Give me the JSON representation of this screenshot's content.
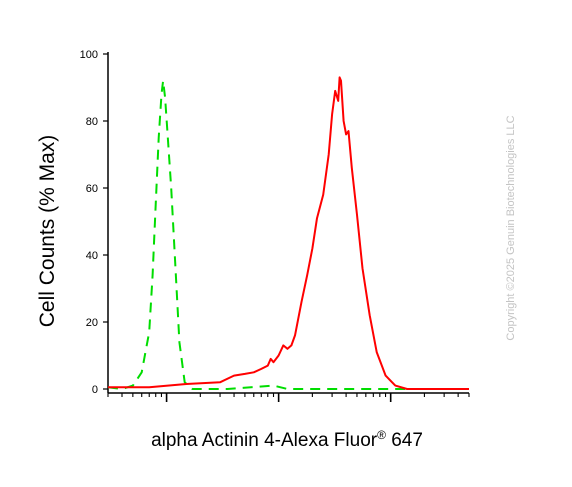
{
  "chart_data": {
    "type": "line",
    "title": "",
    "ylabel": "Cell Counts (% Max)",
    "xlabel_main": "alpha Actinin 4-Alexa Fluor",
    "xlabel_sup": "®",
    "xlabel_tail": " 647",
    "x_scale": "log",
    "xlim": [
      0.3,
      500
    ],
    "ylim": [
      0,
      100
    ],
    "y_ticks": [
      0,
      20,
      40,
      60,
      80,
      100
    ],
    "x_major_ticks": [
      1,
      10,
      100
    ],
    "grid": false,
    "legend": "none",
    "series": [
      {
        "color": "#00dd00",
        "style": "dashed",
        "points": [
          [
            0.3,
            0.5
          ],
          [
            0.4,
            0
          ],
          [
            0.5,
            1
          ],
          [
            0.6,
            5
          ],
          [
            0.7,
            17
          ],
          [
            0.75,
            34
          ],
          [
            0.8,
            55
          ],
          [
            0.85,
            75
          ],
          [
            0.9,
            88
          ],
          [
            0.93,
            92
          ],
          [
            0.97,
            87
          ],
          [
            1.02,
            76
          ],
          [
            1.1,
            60
          ],
          [
            1.2,
            36
          ],
          [
            1.3,
            14
          ],
          [
            1.45,
            2
          ],
          [
            1.7,
            0
          ],
          [
            3.5,
            0
          ],
          [
            9,
            1
          ],
          [
            12,
            0
          ],
          [
            500,
            0
          ]
        ]
      },
      {
        "color": "#ff0000",
        "style": "solid",
        "points": [
          [
            0.3,
            0.5
          ],
          [
            0.7,
            0.5
          ],
          [
            1.5,
            1.5
          ],
          [
            3,
            2
          ],
          [
            4,
            4
          ],
          [
            5,
            4.5
          ],
          [
            6,
            5
          ],
          [
            7,
            6
          ],
          [
            8,
            7
          ],
          [
            8.5,
            9
          ],
          [
            9,
            8
          ],
          [
            10,
            10
          ],
          [
            11,
            13
          ],
          [
            12,
            12
          ],
          [
            13,
            13
          ],
          [
            14,
            16
          ],
          [
            16,
            26
          ],
          [
            18,
            34
          ],
          [
            20,
            42
          ],
          [
            22,
            51
          ],
          [
            25,
            58
          ],
          [
            28,
            70
          ],
          [
            30,
            82
          ],
          [
            32,
            89
          ],
          [
            34,
            86
          ],
          [
            35,
            93
          ],
          [
            36,
            92
          ],
          [
            38,
            80
          ],
          [
            40,
            76
          ],
          [
            42,
            77
          ],
          [
            45,
            66
          ],
          [
            50,
            52
          ],
          [
            56,
            36
          ],
          [
            65,
            22
          ],
          [
            75,
            11
          ],
          [
            90,
            4
          ],
          [
            110,
            1
          ],
          [
            140,
            0
          ],
          [
            500,
            0
          ]
        ]
      }
    ]
  },
  "watermark": "Copyright ©2025 Genuin Biotechnologies LLC",
  "colors": {
    "green_series": "#00dd00",
    "red_series": "#ff0000",
    "axis": "#000000",
    "watermark": "#c4c4c4"
  }
}
